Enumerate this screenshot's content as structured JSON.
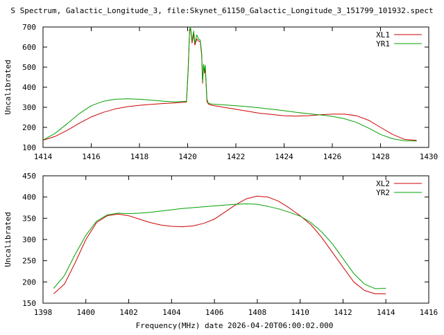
{
  "figure": {
    "title": "S Spectrum, Galactic_Longitude_3, file:Skynet_61150_Galactic_Longitude_3_151799_101932.spect",
    "xlabel": "Frequency(MHz) date 2026-04-20T06:00:02.000"
  },
  "chart_data": [
    {
      "type": "line",
      "ylabel": "Uncalibrated",
      "xlim": [
        1414,
        1430
      ],
      "ylim": [
        100,
        700
      ],
      "xticks": [
        1414,
        1416,
        1418,
        1420,
        1422,
        1424,
        1426,
        1428,
        1430
      ],
      "yticks": [
        100,
        200,
        300,
        400,
        500,
        600,
        700
      ],
      "legend_position": "top-right",
      "series": [
        {
          "name": "XL1",
          "color": "#cc0000",
          "x": [
            1414.0,
            1414.5,
            1415.0,
            1415.5,
            1416.0,
            1416.5,
            1417.0,
            1417.5,
            1418.0,
            1418.5,
            1419.0,
            1419.5,
            1419.95,
            1420.02,
            1420.08,
            1420.12,
            1420.18,
            1420.25,
            1420.3,
            1420.38,
            1420.45,
            1420.52,
            1420.58,
            1420.62,
            1420.66,
            1420.7,
            1420.73,
            1420.77,
            1420.8,
            1420.86,
            1421.0,
            1421.5,
            1422.0,
            1422.5,
            1423.0,
            1423.5,
            1424.0,
            1424.5,
            1425.0,
            1425.5,
            1426.0,
            1426.5,
            1427.0,
            1427.5,
            1428.0,
            1428.5,
            1429.0,
            1429.5
          ],
          "y": [
            136,
            155,
            185,
            220,
            252,
            275,
            292,
            303,
            310,
            315,
            319,
            322,
            326,
            480,
            680,
            690,
            620,
            665,
            610,
            640,
            630,
            628,
            560,
            420,
            505,
            470,
            500,
            400,
            330,
            316,
            310,
            300,
            290,
            280,
            270,
            264,
            258,
            256,
            258,
            263,
            266,
            266,
            258,
            236,
            200,
            165,
            140,
            135
          ]
        },
        {
          "name": "YR1",
          "color": "#00a000",
          "x": [
            1414.0,
            1414.5,
            1415.0,
            1415.5,
            1416.0,
            1416.5,
            1417.0,
            1417.5,
            1418.0,
            1418.5,
            1419.0,
            1419.5,
            1419.95,
            1420.02,
            1420.08,
            1420.12,
            1420.18,
            1420.25,
            1420.3,
            1420.38,
            1420.45,
            1420.52,
            1420.58,
            1420.62,
            1420.66,
            1420.7,
            1420.73,
            1420.77,
            1420.8,
            1420.86,
            1421.0,
            1421.5,
            1422.0,
            1422.5,
            1423.0,
            1423.5,
            1424.0,
            1424.5,
            1425.0,
            1425.5,
            1426.0,
            1426.5,
            1427.0,
            1427.5,
            1428.0,
            1428.5,
            1429.0,
            1429.5
          ],
          "y": [
            137,
            170,
            218,
            268,
            308,
            330,
            340,
            342,
            340,
            335,
            330,
            327,
            330,
            490,
            690,
            700,
            630,
            680,
            620,
            660,
            640,
            635,
            570,
            430,
            515,
            480,
            510,
            410,
            340,
            320,
            316,
            312,
            308,
            303,
            297,
            290,
            283,
            275,
            268,
            262,
            255,
            243,
            225,
            197,
            165,
            143,
            133,
            132
          ]
        }
      ]
    },
    {
      "type": "line",
      "ylabel": "Uncalibrated",
      "xlim": [
        1398,
        1416
      ],
      "ylim": [
        150,
        450
      ],
      "xticks": [
        1398,
        1400,
        1402,
        1404,
        1406,
        1408,
        1410,
        1412,
        1414,
        1416
      ],
      "yticks": [
        150,
        200,
        250,
        300,
        350,
        400,
        450
      ],
      "legend_position": "top-right",
      "series": [
        {
          "name": "XL2",
          "color": "#cc0000",
          "x": [
            1398.5,
            1399.0,
            1399.5,
            1400.0,
            1400.5,
            1401.0,
            1401.5,
            1402.0,
            1402.5,
            1403.0,
            1403.5,
            1404.0,
            1404.5,
            1405.0,
            1405.5,
            1406.0,
            1406.5,
            1407.0,
            1407.5,
            1408.0,
            1408.5,
            1409.0,
            1409.5,
            1410.0,
            1410.5,
            1411.0,
            1411.5,
            1412.0,
            1412.5,
            1413.0,
            1413.5,
            1414.0
          ],
          "y": [
            172,
            195,
            245,
            300,
            340,
            356,
            360,
            356,
            348,
            340,
            334,
            331,
            330,
            332,
            338,
            348,
            365,
            382,
            396,
            402,
            400,
            390,
            374,
            356,
            335,
            305,
            270,
            235,
            200,
            180,
            172,
            172
          ]
        },
        {
          "name": "YR2",
          "color": "#00a000",
          "x": [
            1398.5,
            1399.0,
            1399.5,
            1400.0,
            1400.5,
            1401.0,
            1401.5,
            1402.0,
            1402.5,
            1403.0,
            1403.5,
            1404.0,
            1404.5,
            1405.0,
            1405.5,
            1406.0,
            1406.5,
            1407.0,
            1407.5,
            1408.0,
            1408.5,
            1409.0,
            1409.5,
            1410.0,
            1410.5,
            1411.0,
            1411.5,
            1412.0,
            1412.5,
            1413.0,
            1413.5,
            1414.0
          ],
          "y": [
            185,
            215,
            265,
            310,
            343,
            358,
            362,
            361,
            362,
            364,
            367,
            370,
            373,
            375,
            377,
            379,
            381,
            383,
            384,
            383,
            378,
            372,
            364,
            355,
            340,
            318,
            290,
            255,
            220,
            195,
            184,
            185
          ]
        }
      ]
    }
  ]
}
